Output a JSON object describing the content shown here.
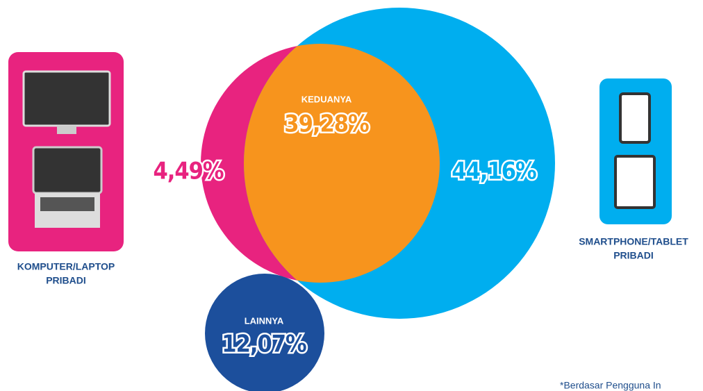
{
  "left_device": {
    "caption": [
      "KOMPUTER/LAPTOP",
      "PRIBADI"
    ]
  },
  "right_device": {
    "caption": [
      "SMARTPHONE/TABLET",
      "PRIBADI"
    ]
  },
  "regions": {
    "computer_only": {
      "value": "4,49%"
    },
    "both": {
      "label": "KEDUANYA",
      "value": "39,28%"
    },
    "smartphone_only": {
      "value": "44,16%"
    },
    "others": {
      "label": "LAINNYA",
      "value": "12,07%"
    }
  },
  "footnote": "*Berdasar Pengguna In"
}
